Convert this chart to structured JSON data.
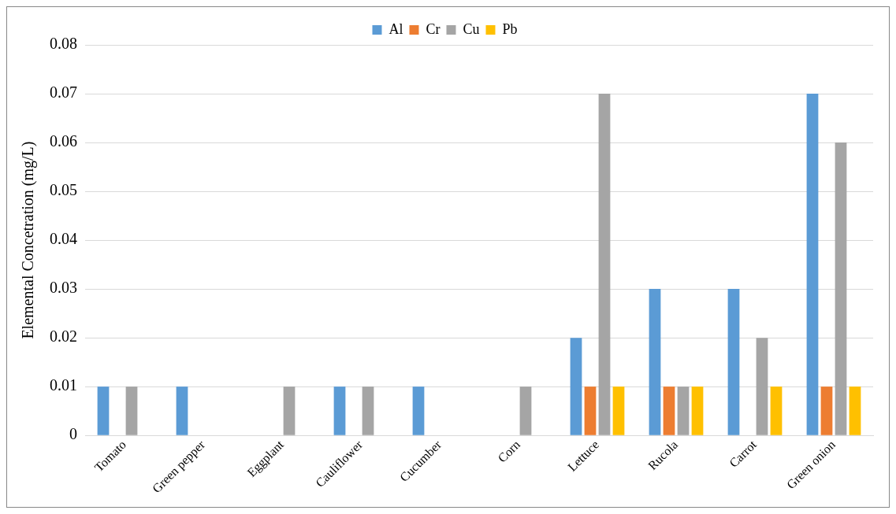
{
  "chart_data": {
    "type": "bar",
    "ylabel": "Elemental Concetration (mg/L)",
    "categories": [
      "Tomato",
      "Green pepper",
      "Eggplant",
      "Cauliflower",
      "Cucumber",
      "Corn",
      "Lettuce",
      "Rucola",
      "Carrot",
      "Green onion"
    ],
    "series": [
      {
        "name": "Al",
        "color": "#5b9bd5",
        "values": [
          0.01,
          0.01,
          0,
          0.01,
          0.01,
          0,
          0.02,
          0.03,
          0.03,
          0.07
        ]
      },
      {
        "name": "Cr",
        "color": "#ed7d31",
        "values": [
          0,
          0,
          0,
          0,
          0,
          0,
          0.01,
          0.01,
          0,
          0.01
        ]
      },
      {
        "name": "Cu",
        "color": "#a5a5a5",
        "values": [
          0.01,
          0,
          0.01,
          0.01,
          0,
          0.01,
          0.07,
          0.01,
          0.02,
          0.06
        ]
      },
      {
        "name": "Pb",
        "color": "#ffc000",
        "values": [
          0,
          0,
          0,
          0,
          0,
          0,
          0.01,
          0.01,
          0.01,
          0.01
        ]
      }
    ],
    "ylim": [
      0,
      0.08
    ],
    "yticks": [
      0,
      0.01,
      0.02,
      0.03,
      0.04,
      0.05,
      0.06,
      0.07,
      0.08
    ],
    "grid": "y",
    "legend": "top"
  }
}
